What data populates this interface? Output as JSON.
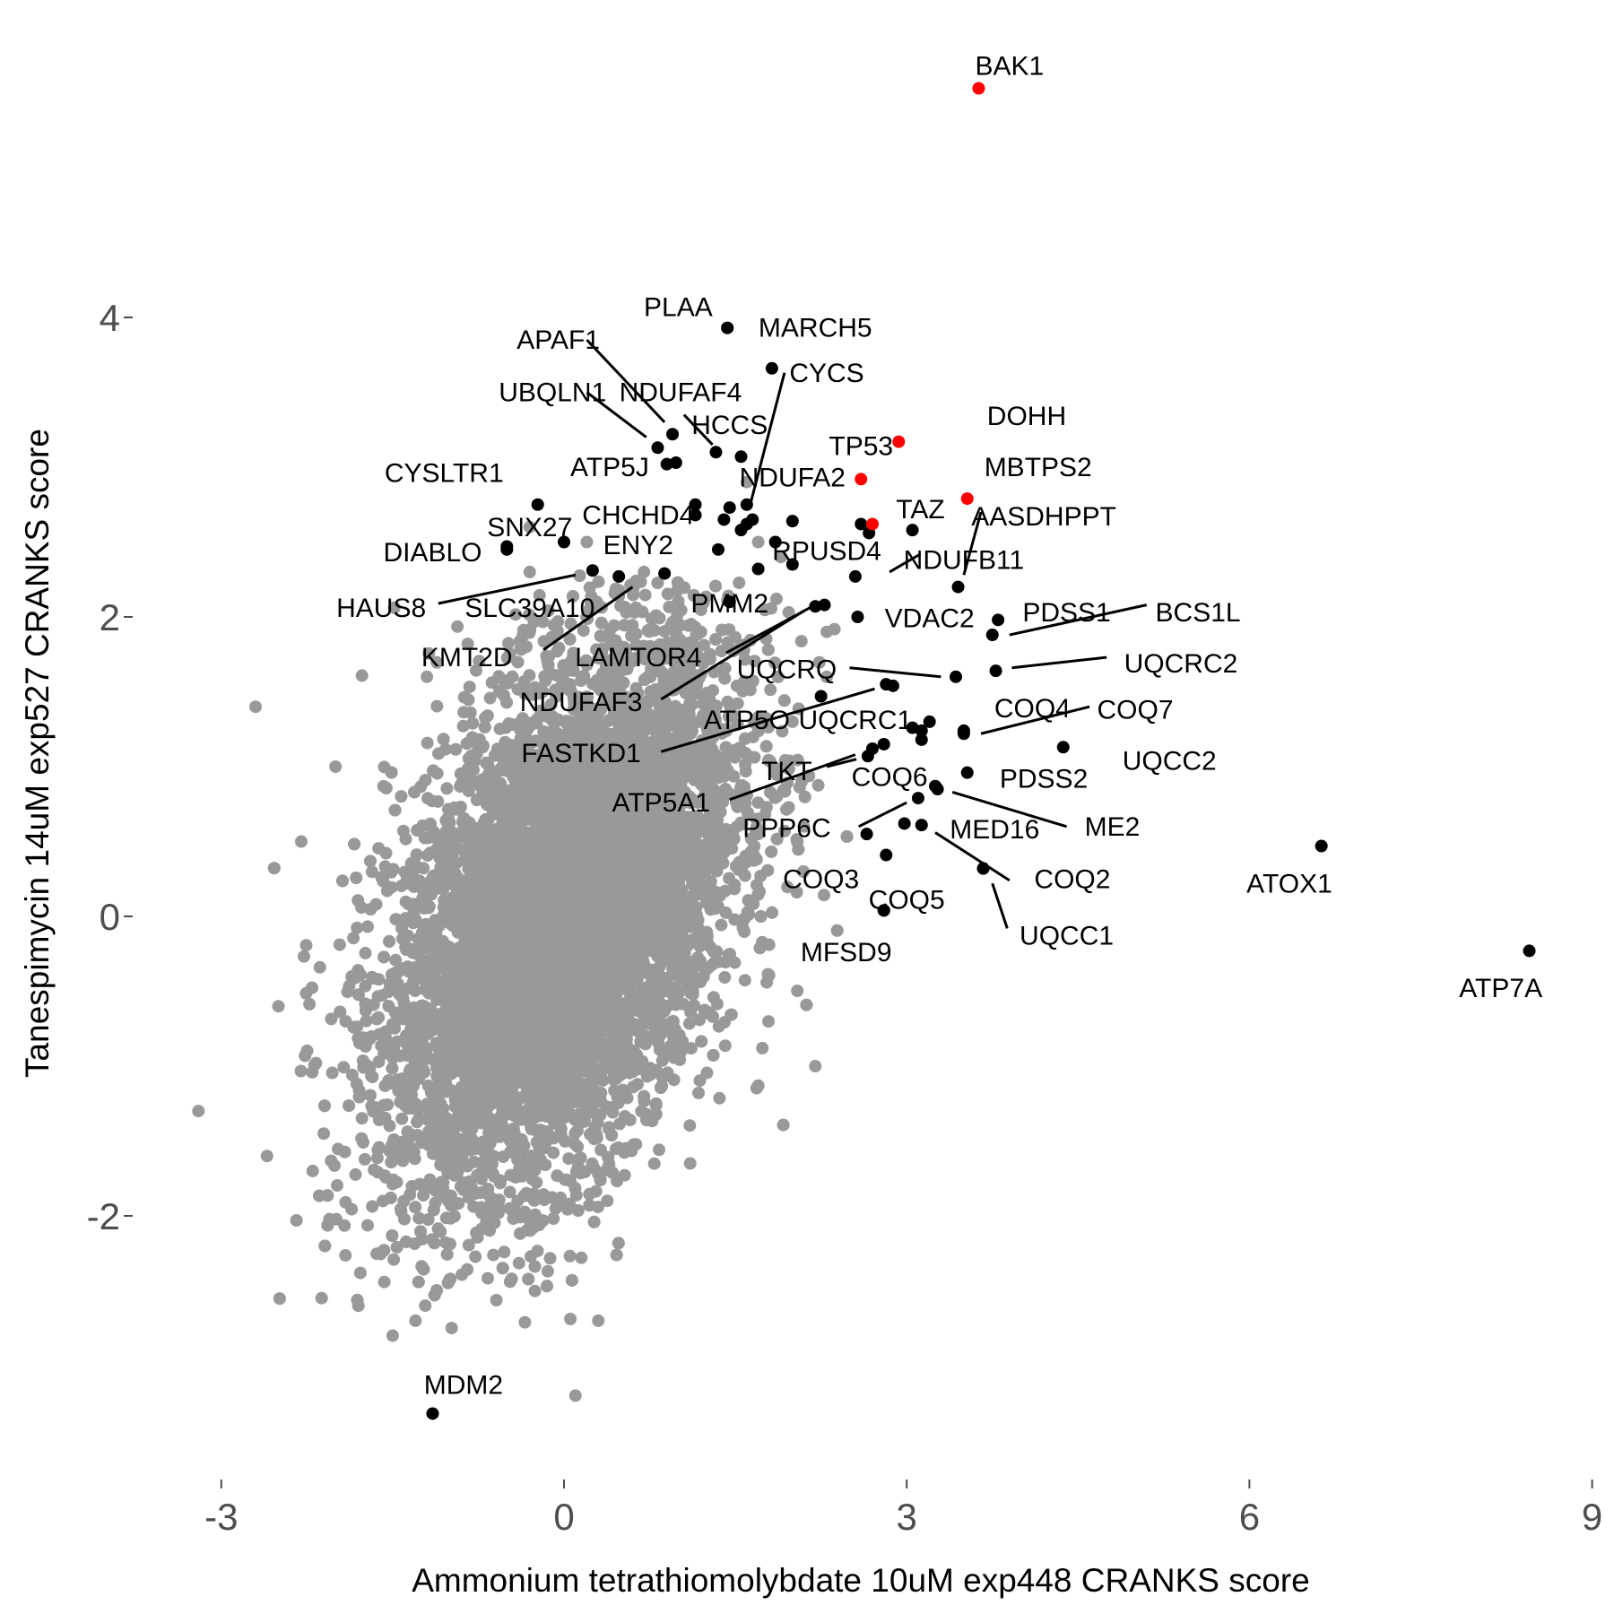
{
  "chart_data": {
    "type": "scatter",
    "xlabel": "Ammonium tetrathiomolybdate 10uM exp448 CRANKS score",
    "ylabel": "Tanespimycin 14uM exp527 CRANKS score",
    "xlim": [
      -3.3,
      9.0
    ],
    "ylim": [
      -3.7,
      5.5
    ],
    "x_ticks": [
      -3,
      0,
      3,
      6,
      9
    ],
    "y_ticks": [
      -2,
      0,
      2,
      4
    ],
    "grid": false,
    "colors": {
      "background": "#999999",
      "highlight": "#000000",
      "emphasis": "#ff0000"
    },
    "background_cloud": {
      "description": "dense cloud of ~18000 non-significant genes",
      "center": [
        0.0,
        0.0
      ],
      "sd": [
        0.75,
        0.9
      ],
      "correlation": 0.45,
      "count": 9000
    },
    "background_outliers": [
      [
        -2.7,
        1.4
      ],
      [
        -3.2,
        -1.3
      ],
      [
        -2.6,
        -1.6
      ],
      [
        -2.5,
        -0.6
      ],
      [
        -2.2,
        -1.7
      ],
      [
        -1.8,
        -2.6
      ],
      [
        -1.5,
        -2.8
      ],
      [
        -1.3,
        -2.7
      ],
      [
        0.1,
        -3.2
      ],
      [
        0.3,
        -2.7
      ],
      [
        -0.3,
        2.6
      ],
      [
        -0.3,
        2.3
      ],
      [
        0.2,
        2.5
      ],
      [
        0.7,
        2.3
      ],
      [
        1.6,
        2.9
      ],
      [
        1.9,
        2.4
      ],
      [
        2.3,
        1.9
      ],
      [
        2.0,
        1.3
      ],
      [
        2.2,
        -1.0
      ],
      [
        2.1,
        0.6
      ],
      [
        -1.2,
        1.6
      ],
      [
        -2.0,
        1.0
      ],
      [
        -2.3,
        0.5
      ],
      [
        1.7,
        2.5
      ],
      [
        2.3,
        1.6
      ]
    ],
    "points": [
      {
        "gene": "BAK1",
        "x": 3.63,
        "y": 5.53,
        "color": "red",
        "lx": 3.9,
        "ly": 5.68
      },
      {
        "gene": "DOHH",
        "x": 2.93,
        "y": 3.17,
        "color": "red",
        "lx": 4.05,
        "ly": 3.34
      },
      {
        "gene": "TP53",
        "x": 2.6,
        "y": 2.92,
        "color": "red",
        "lx": 2.6,
        "ly": 3.14
      },
      {
        "gene": "MBTPS2",
        "x": 3.53,
        "y": 2.79,
        "color": "red",
        "lx": 4.15,
        "ly": 3.0
      },
      {
        "gene": "TAZ",
        "x": 2.7,
        "y": 2.62,
        "color": "red",
        "lx": 3.12,
        "ly": 2.72
      },
      {
        "gene": "PLAA",
        "x": 1.43,
        "y": 3.93,
        "color": "black",
        "lx": 1.0,
        "ly": 4.07
      },
      {
        "gene": "MARCH5",
        "x": 1.43,
        "y": 3.93,
        "color": "black",
        "lx": 2.2,
        "ly": 3.93
      },
      {
        "gene": "APAF1",
        "x": 0.95,
        "y": 3.22,
        "color": "black",
        "lx": -0.05,
        "ly": 3.85,
        "leader": [
          [
            0.2,
            3.85
          ],
          [
            0.88,
            3.3
          ]
        ]
      },
      {
        "gene": "NDUFAF4",
        "x": 1.55,
        "y": 3.07,
        "color": "black",
        "lx": 1.02,
        "ly": 3.5,
        "leader": [
          [
            1.05,
            3.35
          ],
          [
            1.3,
            3.15
          ]
        ]
      },
      {
        "gene": "CYCS",
        "x": 1.82,
        "y": 3.66,
        "color": "black",
        "lx": 2.3,
        "ly": 3.63,
        "leader": [
          [
            1.93,
            3.63
          ],
          [
            1.62,
            2.72
          ]
        ]
      },
      {
        "gene": "UBQLN1",
        "x": 0.82,
        "y": 3.13,
        "color": "black",
        "lx": -0.1,
        "ly": 3.5,
        "leader": [
          [
            0.2,
            3.5
          ],
          [
            0.72,
            3.2
          ]
        ]
      },
      {
        "gene": "ATP5J",
        "x": 0.9,
        "y": 3.02,
        "color": "black",
        "lx": 0.4,
        "ly": 3.0
      },
      {
        "gene": "HCCS",
        "x": 1.33,
        "y": 3.1,
        "color": "black",
        "lx": 1.45,
        "ly": 3.28
      },
      {
        "gene": "CYSLTR1",
        "x": -0.5,
        "y": 2.45,
        "color": "black",
        "lx": -1.05,
        "ly": 2.96
      },
      {
        "gene": "NDUFA2",
        "x": 1.6,
        "y": 2.75,
        "color": "black",
        "lx": 2.0,
        "ly": 2.93
      },
      {
        "gene": "CHCHD4",
        "x": 1.15,
        "y": 2.68,
        "color": "black",
        "lx": 0.65,
        "ly": 2.68
      },
      {
        "gene": "SNX27",
        "x": -0.23,
        "y": 2.75,
        "color": "black",
        "lx": -0.3,
        "ly": 2.6
      },
      {
        "gene": "DIABLO",
        "x": -0.5,
        "y": 2.47,
        "color": "black",
        "lx": -1.15,
        "ly": 2.43
      },
      {
        "gene": "ENY2",
        "x": 0.0,
        "y": 2.5,
        "color": "black",
        "lx": 0.65,
        "ly": 2.48
      },
      {
        "gene": "RPUSD4",
        "x": 2.0,
        "y": 2.64,
        "color": "black",
        "lx": 2.3,
        "ly": 2.44
      },
      {
        "gene": "HAUS8",
        "x": 0.25,
        "y": 2.31,
        "color": "black",
        "lx": -1.6,
        "ly": 2.06,
        "leader": [
          [
            -1.1,
            2.09
          ],
          [
            0.1,
            2.28
          ]
        ]
      },
      {
        "gene": "SLC39A10",
        "x": 0.48,
        "y": 2.27,
        "color": "black",
        "lx": -0.3,
        "ly": 2.06
      },
      {
        "gene": "NDUFB11",
        "x": 2.55,
        "y": 2.27,
        "color": "black",
        "lx": 3.5,
        "ly": 2.38,
        "leader": [
          [
            2.85,
            2.3
          ],
          [
            3.12,
            2.42
          ]
        ]
      },
      {
        "gene": "PMM2",
        "x": 1.45,
        "y": 2.1,
        "color": "black",
        "lx": 1.45,
        "ly": 2.09
      },
      {
        "gene": "KMT2D",
        "x": 0.88,
        "y": 2.29,
        "color": "black",
        "lx": -0.85,
        "ly": 1.73,
        "leader": [
          [
            -0.18,
            1.78
          ],
          [
            0.6,
            2.2
          ]
        ]
      },
      {
        "gene": "VDAC2",
        "x": 2.57,
        "y": 2.0,
        "color": "black",
        "lx": 3.2,
        "ly": 1.99
      },
      {
        "gene": "AASDHPPT",
        "x": 3.45,
        "y": 2.2,
        "color": "black",
        "lx": 4.2,
        "ly": 2.67,
        "leader": [
          [
            3.65,
            2.7
          ],
          [
            3.5,
            2.28
          ]
        ]
      },
      {
        "gene": "PDSS1",
        "x": 3.8,
        "y": 1.98,
        "color": "black",
        "lx": 4.4,
        "ly": 2.03
      },
      {
        "gene": "BCS1L",
        "x": 3.75,
        "y": 1.88,
        "color": "black",
        "lx": 5.55,
        "ly": 2.03,
        "leader": [
          [
            5.1,
            2.08
          ],
          [
            3.9,
            1.88
          ]
        ]
      },
      {
        "gene": "LAMTOR4",
        "x": 2.28,
        "y": 2.08,
        "color": "black",
        "lx": 0.65,
        "ly": 1.73,
        "leader": [
          [
            1.42,
            1.76
          ],
          [
            2.15,
            2.06
          ]
        ]
      },
      {
        "gene": "UQCRQ",
        "x": 3.43,
        "y": 1.6,
        "color": "black",
        "lx": 1.95,
        "ly": 1.65,
        "leader": [
          [
            2.5,
            1.66
          ],
          [
            3.3,
            1.6
          ]
        ]
      },
      {
        "gene": "UQCRC2",
        "x": 3.78,
        "y": 1.64,
        "color": "black",
        "lx": 5.4,
        "ly": 1.69,
        "leader": [
          [
            4.75,
            1.73
          ],
          [
            3.92,
            1.66
          ]
        ]
      },
      {
        "gene": "NDUFAF3",
        "x": 2.2,
        "y": 2.07,
        "color": "black",
        "lx": 0.15,
        "ly": 1.43,
        "leader": [
          [
            0.85,
            1.45
          ],
          [
            2.1,
            2.04
          ]
        ]
      },
      {
        "gene": "ATP5O",
        "x": 2.88,
        "y": 1.54,
        "color": "black",
        "lx": 1.6,
        "ly": 1.31
      },
      {
        "gene": "UQCRC1",
        "x": 3.13,
        "y": 1.24,
        "color": "black",
        "lx": 2.55,
        "ly": 1.31
      },
      {
        "gene": "COQ4",
        "x": 3.5,
        "y": 1.24,
        "color": "black",
        "lx": 4.1,
        "ly": 1.39
      },
      {
        "gene": "COQ7",
        "x": 3.5,
        "y": 1.22,
        "color": "black",
        "lx": 5.0,
        "ly": 1.38,
        "leader": [
          [
            4.6,
            1.4
          ],
          [
            3.65,
            1.22
          ]
        ]
      },
      {
        "gene": "FASTKD1",
        "x": 2.82,
        "y": 1.55,
        "color": "black",
        "lx": 0.15,
        "ly": 1.09,
        "leader": [
          [
            0.85,
            1.1
          ],
          [
            2.72,
            1.52
          ]
        ]
      },
      {
        "gene": "UQCC2",
        "x": 4.37,
        "y": 1.13,
        "color": "black",
        "lx": 5.3,
        "ly": 1.04
      },
      {
        "gene": "TKT",
        "x": 2.66,
        "y": 1.07,
        "color": "black",
        "lx": 1.95,
        "ly": 0.97,
        "leader": [
          [
            2.3,
            1.0
          ],
          [
            2.56,
            1.05
          ]
        ]
      },
      {
        "gene": "COQ6",
        "x": 2.8,
        "y": 1.15,
        "color": "black",
        "lx": 2.85,
        "ly": 0.93
      },
      {
        "gene": "PDSS2",
        "x": 3.53,
        "y": 0.96,
        "color": "black",
        "lx": 4.2,
        "ly": 0.92
      },
      {
        "gene": "ATP5A1",
        "x": 2.7,
        "y": 1.12,
        "color": "black",
        "lx": 0.85,
        "ly": 0.76,
        "leader": [
          [
            1.45,
            0.78
          ],
          [
            2.55,
            1.08
          ]
        ]
      },
      {
        "gene": "ME2",
        "x": 3.27,
        "y": 0.85,
        "color": "black",
        "lx": 4.8,
        "ly": 0.6,
        "leader": [
          [
            4.4,
            0.6
          ],
          [
            3.4,
            0.83
          ]
        ]
      },
      {
        "gene": "PPP6C",
        "x": 3.1,
        "y": 0.79,
        "color": "black",
        "lx": 1.95,
        "ly": 0.59,
        "leader": [
          [
            2.58,
            0.6
          ],
          [
            3.0,
            0.76
          ]
        ]
      },
      {
        "gene": "MED16",
        "x": 3.13,
        "y": 0.61,
        "color": "black",
        "lx": 3.77,
        "ly": 0.58
      },
      {
        "gene": "COQ2",
        "x": 3.67,
        "y": 0.32,
        "color": "black",
        "lx": 4.45,
        "ly": 0.25,
        "leader": [
          [
            3.9,
            0.24
          ],
          [
            3.25,
            0.56
          ]
        ]
      },
      {
        "gene": "COQ3",
        "x": 2.82,
        "y": 0.41,
        "color": "black",
        "lx": 2.25,
        "ly": 0.25
      },
      {
        "gene": "COQ5",
        "x": 2.8,
        "y": 0.04,
        "color": "black",
        "lx": 3.0,
        "ly": 0.11
      },
      {
        "gene": "UQCC1",
        "x": 3.67,
        "y": 0.32,
        "color": "black",
        "lx": 4.4,
        "ly": -0.13,
        "leader": [
          [
            3.88,
            -0.08
          ],
          [
            3.75,
            0.22
          ]
        ]
      },
      {
        "gene": "MFSD9",
        "x": 2.8,
        "y": 0.04,
        "color": "black",
        "lx": 2.47,
        "ly": -0.24
      },
      {
        "gene": "ATOX1",
        "x": 6.63,
        "y": 0.47,
        "color": "black",
        "lx": 6.35,
        "ly": 0.22
      },
      {
        "gene": "ATP7A",
        "x": 8.45,
        "y": -0.23,
        "color": "black",
        "lx": 8.2,
        "ly": -0.48
      },
      {
        "gene": "MDM2",
        "x": -1.15,
        "y": -3.32,
        "color": "black",
        "lx": -0.88,
        "ly": -3.13
      }
    ],
    "extra_black_points": [
      [
        1.45,
        2.73
      ],
      [
        1.55,
        2.58
      ],
      [
        1.65,
        2.65
      ],
      [
        1.35,
        2.45
      ],
      [
        1.7,
        2.32
      ],
      [
        1.85,
        2.5
      ],
      [
        2.0,
        2.35
      ],
      [
        3.05,
        2.58
      ],
      [
        2.67,
        2.56
      ],
      [
        2.6,
        2.62
      ],
      [
        3.2,
        1.3
      ],
      [
        3.05,
        1.26
      ],
      [
        3.13,
        1.18
      ],
      [
        2.98,
        0.62
      ],
      [
        2.65,
        0.55
      ],
      [
        2.25,
        1.47
      ],
      [
        3.25,
        0.87
      ],
      [
        1.4,
        2.65
      ],
      [
        0.98,
        3.03
      ],
      [
        1.15,
        2.75
      ],
      [
        1.6,
        2.62
      ]
    ]
  }
}
